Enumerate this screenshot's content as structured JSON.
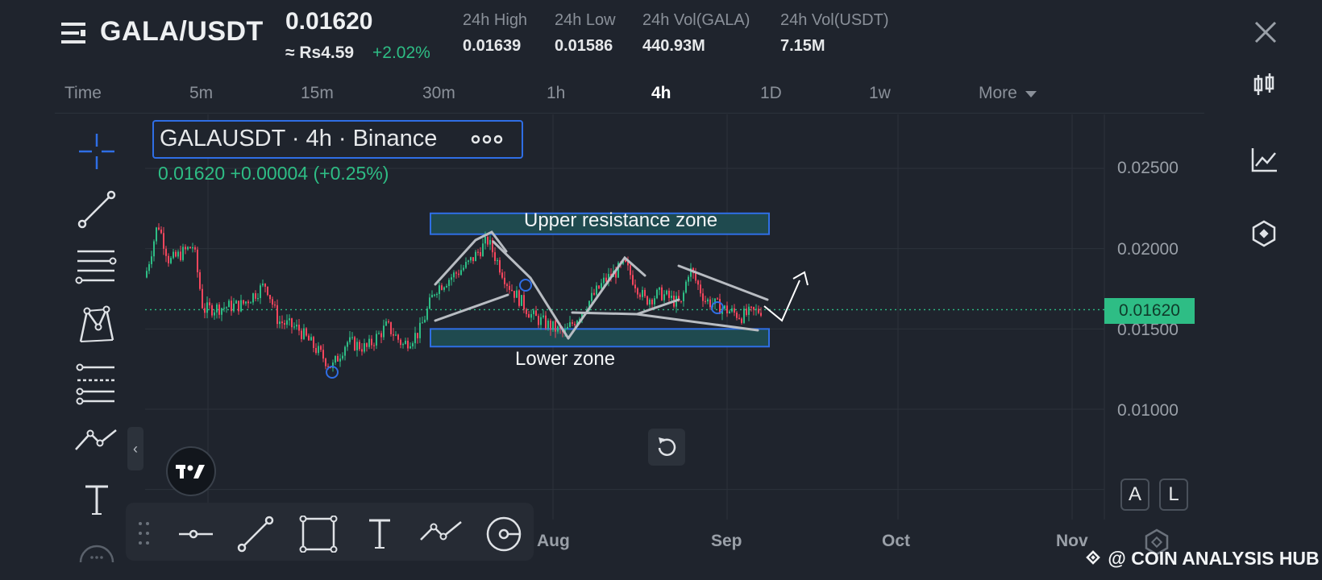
{
  "header": {
    "pair": "GALA/USDT",
    "price": "0.01620",
    "approx_local": "≈ Rs4.59",
    "change_pct": "+2.02%",
    "stats": [
      {
        "label": "24h High",
        "value": "0.01639"
      },
      {
        "label": "24h Low",
        "value": "0.01586"
      },
      {
        "label": "24h Vol(GALA)",
        "value": "440.93M"
      },
      {
        "label": "24h Vol(USDT)",
        "value": "7.15M"
      }
    ]
  },
  "timeframes": [
    "Time",
    "5m",
    "15m",
    "30m",
    "1h",
    "4h",
    "1D",
    "1w",
    "More"
  ],
  "active_timeframe": "4h",
  "chart": {
    "symbol_label": "GALAUSDT · 4h · Binance",
    "menu_dots": "ooo",
    "ohlc_label": "0.01620  +0.00004 (+0.25%)",
    "y_ticks": [
      "0.02500",
      "0.02000",
      "0.01500",
      "0.01000"
    ],
    "current_price_tag": "0.01620",
    "x_ticks": [
      "Aug",
      "Sep",
      "Oct",
      "Nov"
    ],
    "upper_zone_label": "Upper resistance zone",
    "lower_zone_label": "Lower zone",
    "up_color": "#2ebd85",
    "down_color": "#f6465d"
  },
  "chart_data": {
    "type": "candlestick",
    "y_range": [
      0.008,
      0.0275
    ],
    "price_line": 0.0162,
    "upper_zone": [
      0.0209,
      0.0222
    ],
    "lower_zone": [
      0.0139,
      0.015
    ]
  },
  "buttons": {
    "auto_label": "A",
    "log_label": "L",
    "collapse_glyph": "‹"
  },
  "watermark": "@ COIN ANALYSIS HUB"
}
